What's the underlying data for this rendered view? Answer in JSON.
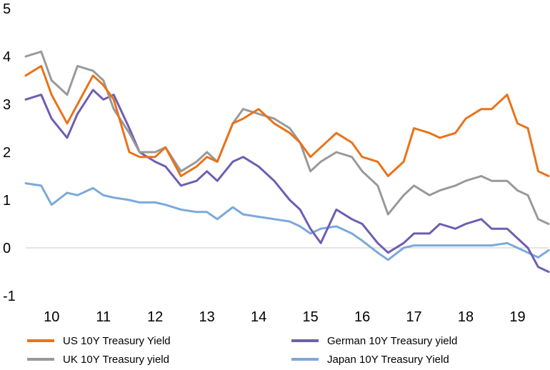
{
  "chart_data": {
    "type": "line",
    "title": "",
    "xlabel": "",
    "ylabel": "",
    "xlim": [
      2009.5,
      2019.6
    ],
    "ylim": [
      -1,
      5
    ],
    "y_ticks": [
      5,
      4,
      3,
      2,
      1,
      0,
      -1
    ],
    "x_tick_values": [
      2010,
      2011,
      2012,
      2013,
      2014,
      2015,
      2016,
      2017,
      2018,
      2019
    ],
    "x_tick_labels": [
      "10",
      "11",
      "12",
      "13",
      "14",
      "15",
      "16",
      "17",
      "18",
      "19"
    ],
    "grid": false,
    "zero_line": true,
    "legend_position": "bottom",
    "series": [
      {
        "name": "US 10Y Treasury Yield",
        "color": "#E8731A",
        "x": [
          2009.5,
          2009.8,
          2010.0,
          2010.3,
          2010.5,
          2010.8,
          2011.0,
          2011.2,
          2011.5,
          2011.7,
          2012.0,
          2012.2,
          2012.5,
          2012.8,
          2013.0,
          2013.2,
          2013.5,
          2013.7,
          2014.0,
          2014.3,
          2014.6,
          2014.8,
          2015.0,
          2015.2,
          2015.5,
          2015.8,
          2016.0,
          2016.3,
          2016.5,
          2016.8,
          2017.0,
          2017.3,
          2017.5,
          2017.8,
          2018.0,
          2018.3,
          2018.5,
          2018.8,
          2019.0,
          2019.2,
          2019.4,
          2019.6
        ],
        "values": [
          3.6,
          3.8,
          3.2,
          2.6,
          3.0,
          3.6,
          3.4,
          3.1,
          2.0,
          1.9,
          1.9,
          2.1,
          1.5,
          1.7,
          1.9,
          1.8,
          2.6,
          2.7,
          2.9,
          2.6,
          2.4,
          2.2,
          1.9,
          2.1,
          2.4,
          2.2,
          1.9,
          1.8,
          1.5,
          1.8,
          2.5,
          2.4,
          2.3,
          2.4,
          2.7,
          2.9,
          2.9,
          3.2,
          2.6,
          2.5,
          1.6,
          1.5
        ]
      },
      {
        "name": "UK 10Y Treasury yield",
        "color": "#999999",
        "x": [
          2009.5,
          2009.8,
          2010.0,
          2010.3,
          2010.5,
          2010.8,
          2011.0,
          2011.2,
          2011.5,
          2011.7,
          2012.0,
          2012.2,
          2012.5,
          2012.8,
          2013.0,
          2013.2,
          2013.5,
          2013.7,
          2014.0,
          2014.3,
          2014.6,
          2014.8,
          2015.0,
          2015.2,
          2015.5,
          2015.8,
          2016.0,
          2016.3,
          2016.5,
          2016.8,
          2017.0,
          2017.3,
          2017.5,
          2017.8,
          2018.0,
          2018.3,
          2018.5,
          2018.8,
          2019.0,
          2019.2,
          2019.4,
          2019.6
        ],
        "values": [
          4.0,
          4.1,
          3.5,
          3.2,
          3.8,
          3.7,
          3.5,
          2.9,
          2.4,
          2.0,
          2.0,
          2.1,
          1.6,
          1.8,
          2.0,
          1.8,
          2.6,
          2.9,
          2.8,
          2.7,
          2.5,
          2.2,
          1.6,
          1.8,
          2.0,
          1.9,
          1.6,
          1.3,
          0.7,
          1.1,
          1.3,
          1.1,
          1.2,
          1.3,
          1.4,
          1.5,
          1.4,
          1.4,
          1.2,
          1.1,
          0.6,
          0.5
        ]
      },
      {
        "name": "German 10Y Treasury yield",
        "color": "#6F5DB3",
        "x": [
          2009.5,
          2009.8,
          2010.0,
          2010.3,
          2010.5,
          2010.8,
          2011.0,
          2011.2,
          2011.5,
          2011.7,
          2012.0,
          2012.2,
          2012.5,
          2012.8,
          2013.0,
          2013.2,
          2013.5,
          2013.7,
          2014.0,
          2014.3,
          2014.6,
          2014.8,
          2015.0,
          2015.2,
          2015.5,
          2015.8,
          2016.0,
          2016.3,
          2016.5,
          2016.8,
          2017.0,
          2017.3,
          2017.5,
          2017.8,
          2018.0,
          2018.3,
          2018.5,
          2018.8,
          2019.0,
          2019.2,
          2019.4,
          2019.6
        ],
        "values": [
          3.1,
          3.2,
          2.7,
          2.3,
          2.8,
          3.3,
          3.1,
          3.2,
          2.5,
          2.0,
          1.8,
          1.7,
          1.3,
          1.4,
          1.6,
          1.4,
          1.8,
          1.9,
          1.7,
          1.4,
          1.0,
          0.8,
          0.4,
          0.1,
          0.8,
          0.6,
          0.5,
          0.1,
          -0.1,
          0.1,
          0.3,
          0.3,
          0.5,
          0.4,
          0.5,
          0.6,
          0.4,
          0.4,
          0.2,
          0.0,
          -0.4,
          -0.5
        ]
      },
      {
        "name": "Japan 10Y Treasury Yield",
        "color": "#7BA9DA",
        "x": [
          2009.5,
          2009.8,
          2010.0,
          2010.3,
          2010.5,
          2010.8,
          2011.0,
          2011.2,
          2011.5,
          2011.7,
          2012.0,
          2012.2,
          2012.5,
          2012.8,
          2013.0,
          2013.2,
          2013.5,
          2013.7,
          2014.0,
          2014.3,
          2014.6,
          2014.8,
          2015.0,
          2015.2,
          2015.5,
          2015.8,
          2016.0,
          2016.3,
          2016.5,
          2016.8,
          2017.0,
          2017.3,
          2017.5,
          2017.8,
          2018.0,
          2018.3,
          2018.5,
          2018.8,
          2019.0,
          2019.2,
          2019.4,
          2019.6
        ],
        "values": [
          1.35,
          1.3,
          0.9,
          1.15,
          1.1,
          1.25,
          1.1,
          1.05,
          1.0,
          0.95,
          0.95,
          0.9,
          0.8,
          0.75,
          0.75,
          0.6,
          0.85,
          0.7,
          0.65,
          0.6,
          0.55,
          0.45,
          0.3,
          0.4,
          0.45,
          0.3,
          0.15,
          -0.1,
          -0.25,
          0.0,
          0.05,
          0.05,
          0.05,
          0.05,
          0.05,
          0.05,
          0.05,
          0.1,
          0.0,
          -0.1,
          -0.2,
          -0.05
        ]
      }
    ]
  }
}
